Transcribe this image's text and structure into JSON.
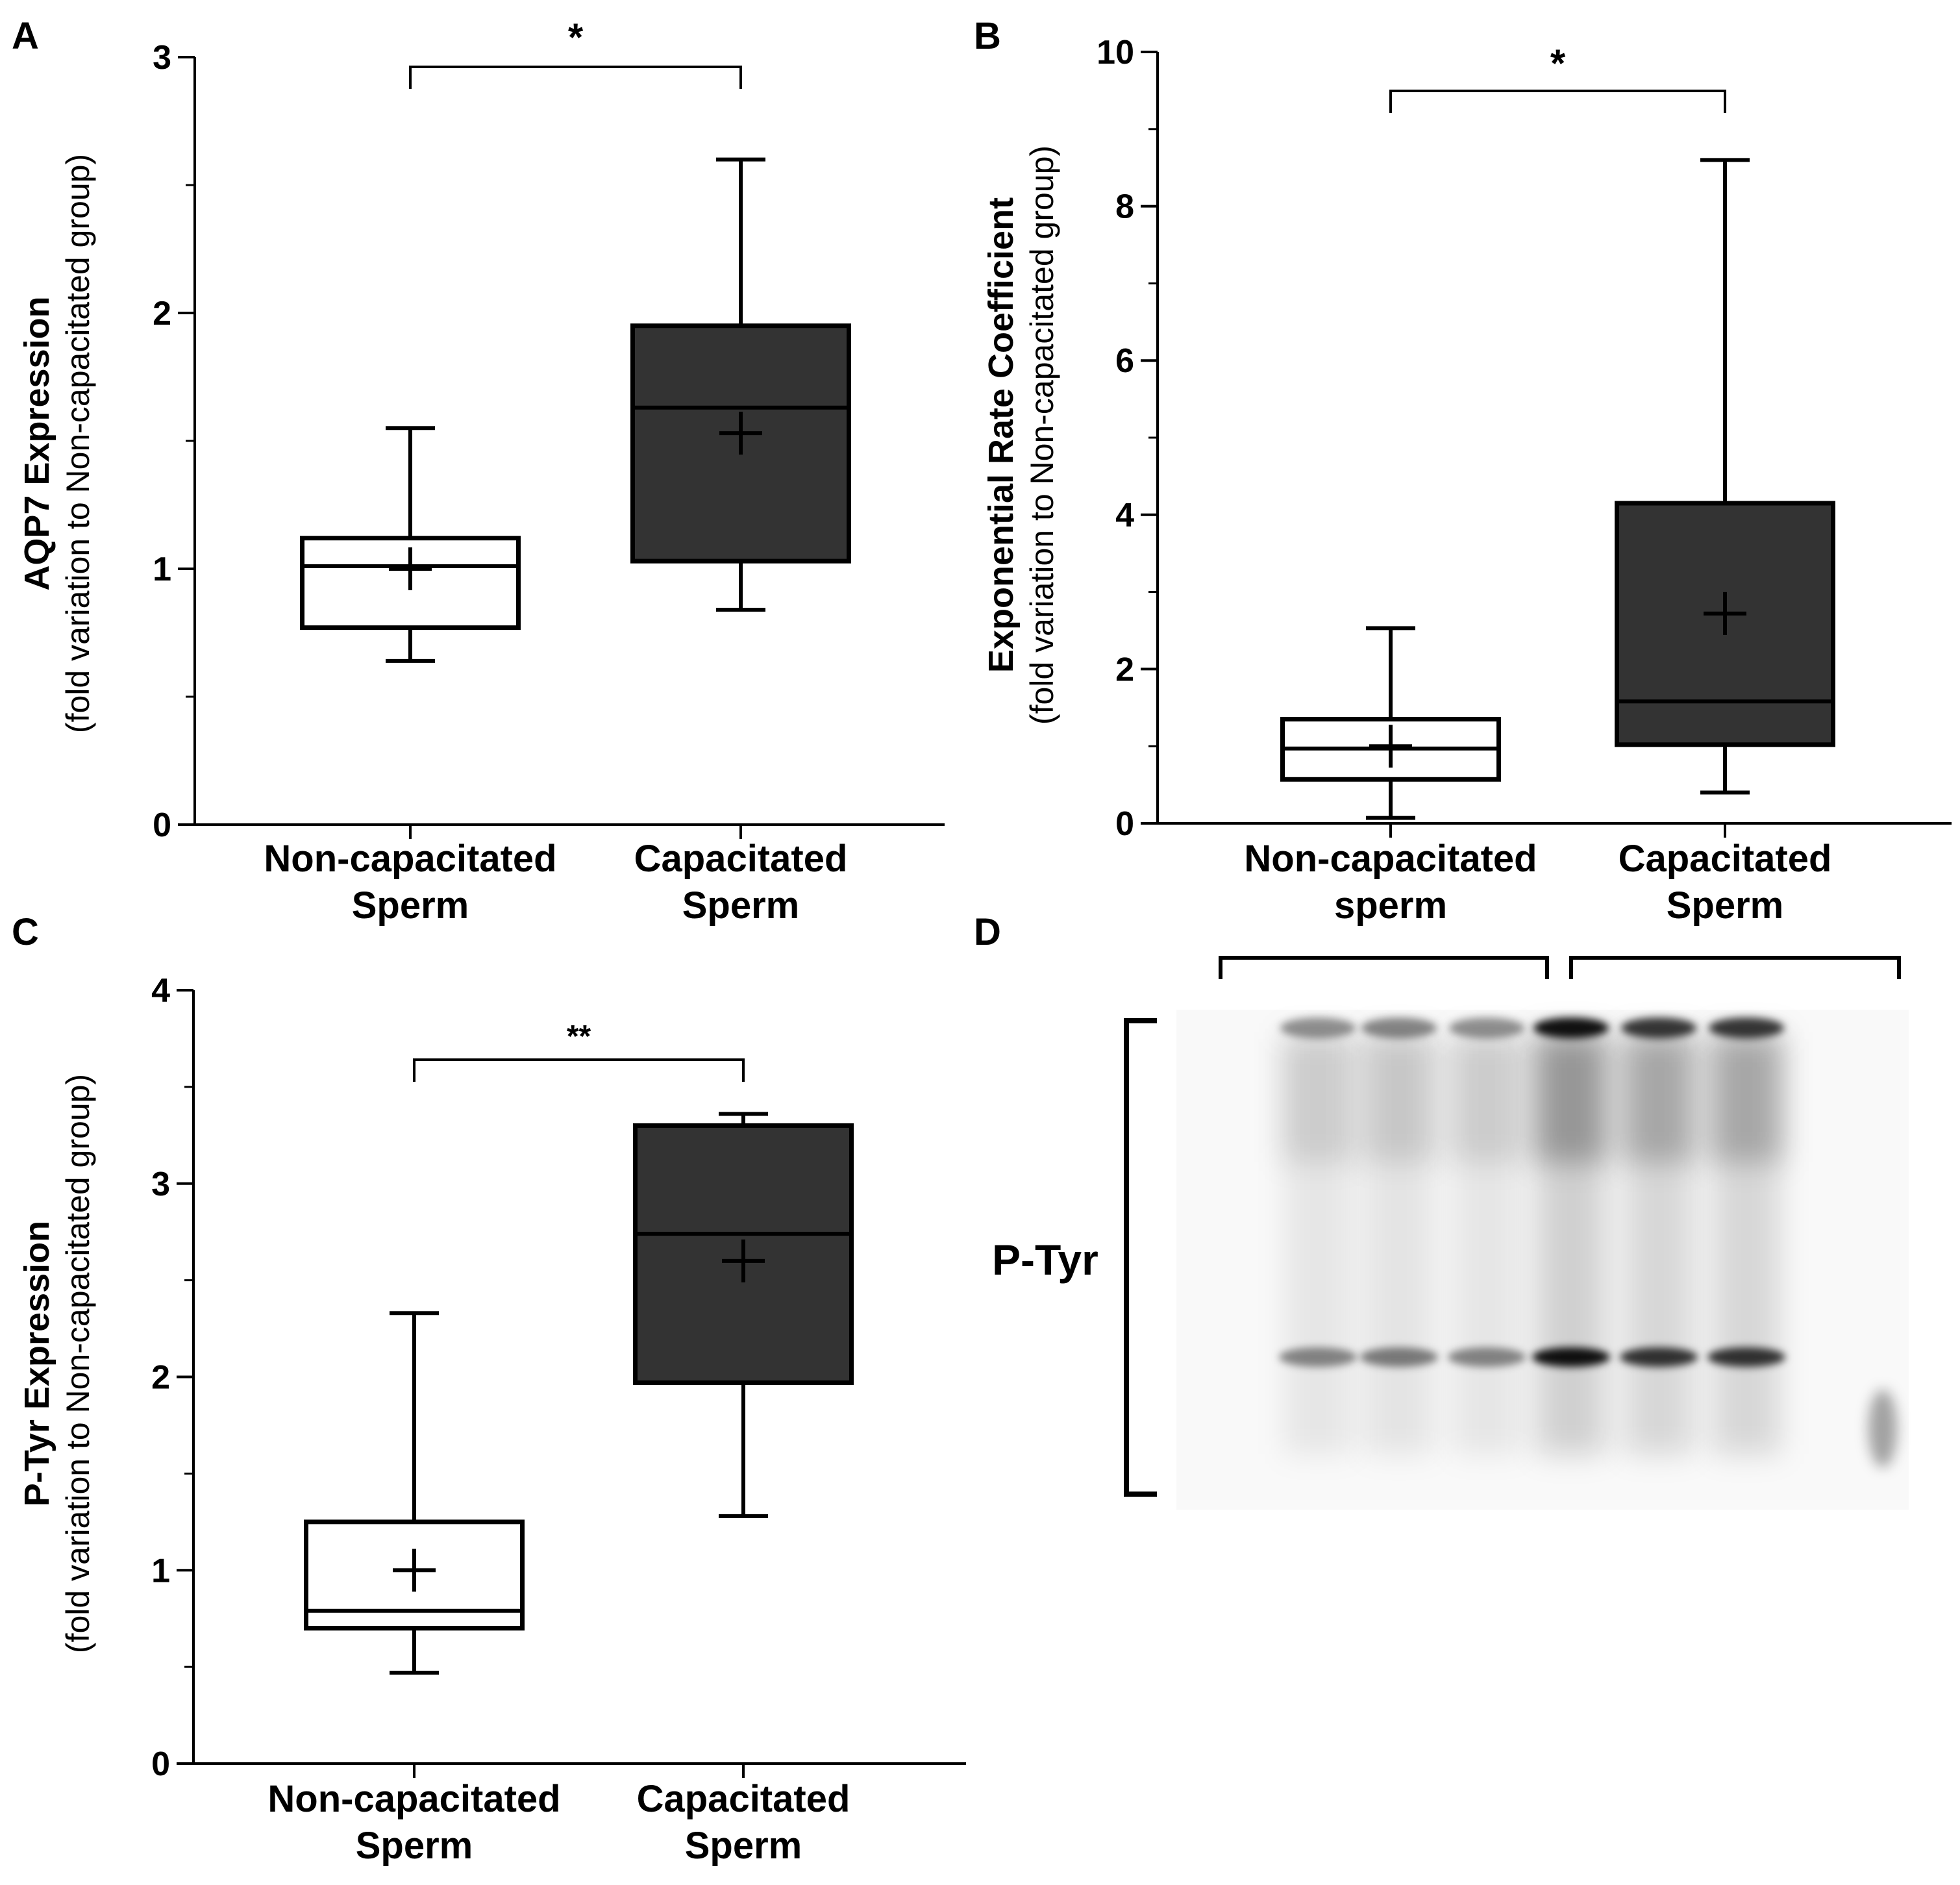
{
  "figure_labels": {
    "a": "A",
    "b": "B",
    "c": "C",
    "d": "D"
  },
  "colors": {
    "ink": "#000000",
    "dark_box": "#333333",
    "light_box": "#ffffff"
  },
  "chart_data": [
    {
      "id": "A",
      "type": "boxplot",
      "ylabel": "AQP7 Expression",
      "ylabel_sub": "(fold variation to Non-capacitated group)",
      "ylim": [
        0,
        3
      ],
      "yticks": [
        "0",
        "1",
        "2",
        "3"
      ],
      "minor_step": 0.5,
      "categories": [
        {
          "line1": "Non-capacitated",
          "line2": "Sperm",
          "whisker_low": 0.64,
          "q1": 0.77,
          "median": 1.01,
          "q3": 1.12,
          "whisker_high": 1.55,
          "mean": 1.0,
          "fill": "white"
        },
        {
          "line1": "Capacitated",
          "line2": "Sperm",
          "whisker_low": 0.84,
          "q1": 1.03,
          "median": 1.63,
          "q3": 1.95,
          "whisker_high": 2.6,
          "mean": 1.53,
          "fill": "dark"
        }
      ],
      "significance": {
        "label": "*",
        "level": 2.97
      }
    },
    {
      "id": "B",
      "type": "boxplot",
      "ylabel": "Exponential Rate Coefficient",
      "ylabel_sub": "(fold variation to Non-capacitated group)",
      "ylim": [
        0,
        10
      ],
      "yticks": [
        "0",
        "2",
        "4",
        "6",
        "8",
        "10"
      ],
      "minor_step": 1,
      "categories": [
        {
          "line1": "Non-capacitated",
          "line2": "sperm",
          "whisker_low": 0.07,
          "q1": 0.57,
          "median": 0.97,
          "q3": 1.35,
          "whisker_high": 2.53,
          "mean": 1.0,
          "fill": "white"
        },
        {
          "line1": "Capacitated",
          "line2": "Sperm",
          "whisker_low": 0.4,
          "q1": 1.02,
          "median": 1.58,
          "q3": 4.15,
          "whisker_high": 8.6,
          "mean": 2.72,
          "fill": "dark"
        }
      ],
      "significance": {
        "label": "*",
        "level": 9.5
      }
    },
    {
      "id": "C",
      "type": "boxplot",
      "ylabel": "P-Tyr Expression",
      "ylabel_sub": "(fold variation to Non-capacitated group)",
      "ylim": [
        0,
        4
      ],
      "yticks": [
        "0",
        "1",
        "2",
        "3",
        "4"
      ],
      "minor_step": 0.5,
      "categories": [
        {
          "line1": "Non-capacitated",
          "line2": "Sperm",
          "whisker_low": 0.47,
          "q1": 0.7,
          "median": 0.79,
          "q3": 1.25,
          "whisker_high": 2.33,
          "mean": 1.0,
          "fill": "white"
        },
        {
          "line1": "Capacitated",
          "line2": "Sperm",
          "whisker_low": 1.28,
          "q1": 1.97,
          "median": 2.74,
          "q3": 3.3,
          "whisker_high": 3.36,
          "mean": 2.6,
          "fill": "dark"
        }
      ],
      "significance": {
        "label": "**",
        "level": 3.64
      }
    }
  ],
  "blot": {
    "label": "P-Tyr",
    "groups": 2,
    "lanes": [
      {
        "group": 1,
        "intensity": 0.25
      },
      {
        "group": 1,
        "intensity": 0.3
      },
      {
        "group": 1,
        "intensity": 0.25
      },
      {
        "group": 2,
        "intensity": 0.9
      },
      {
        "group": 2,
        "intensity": 0.7
      },
      {
        "group": 2,
        "intensity": 0.7
      }
    ]
  }
}
